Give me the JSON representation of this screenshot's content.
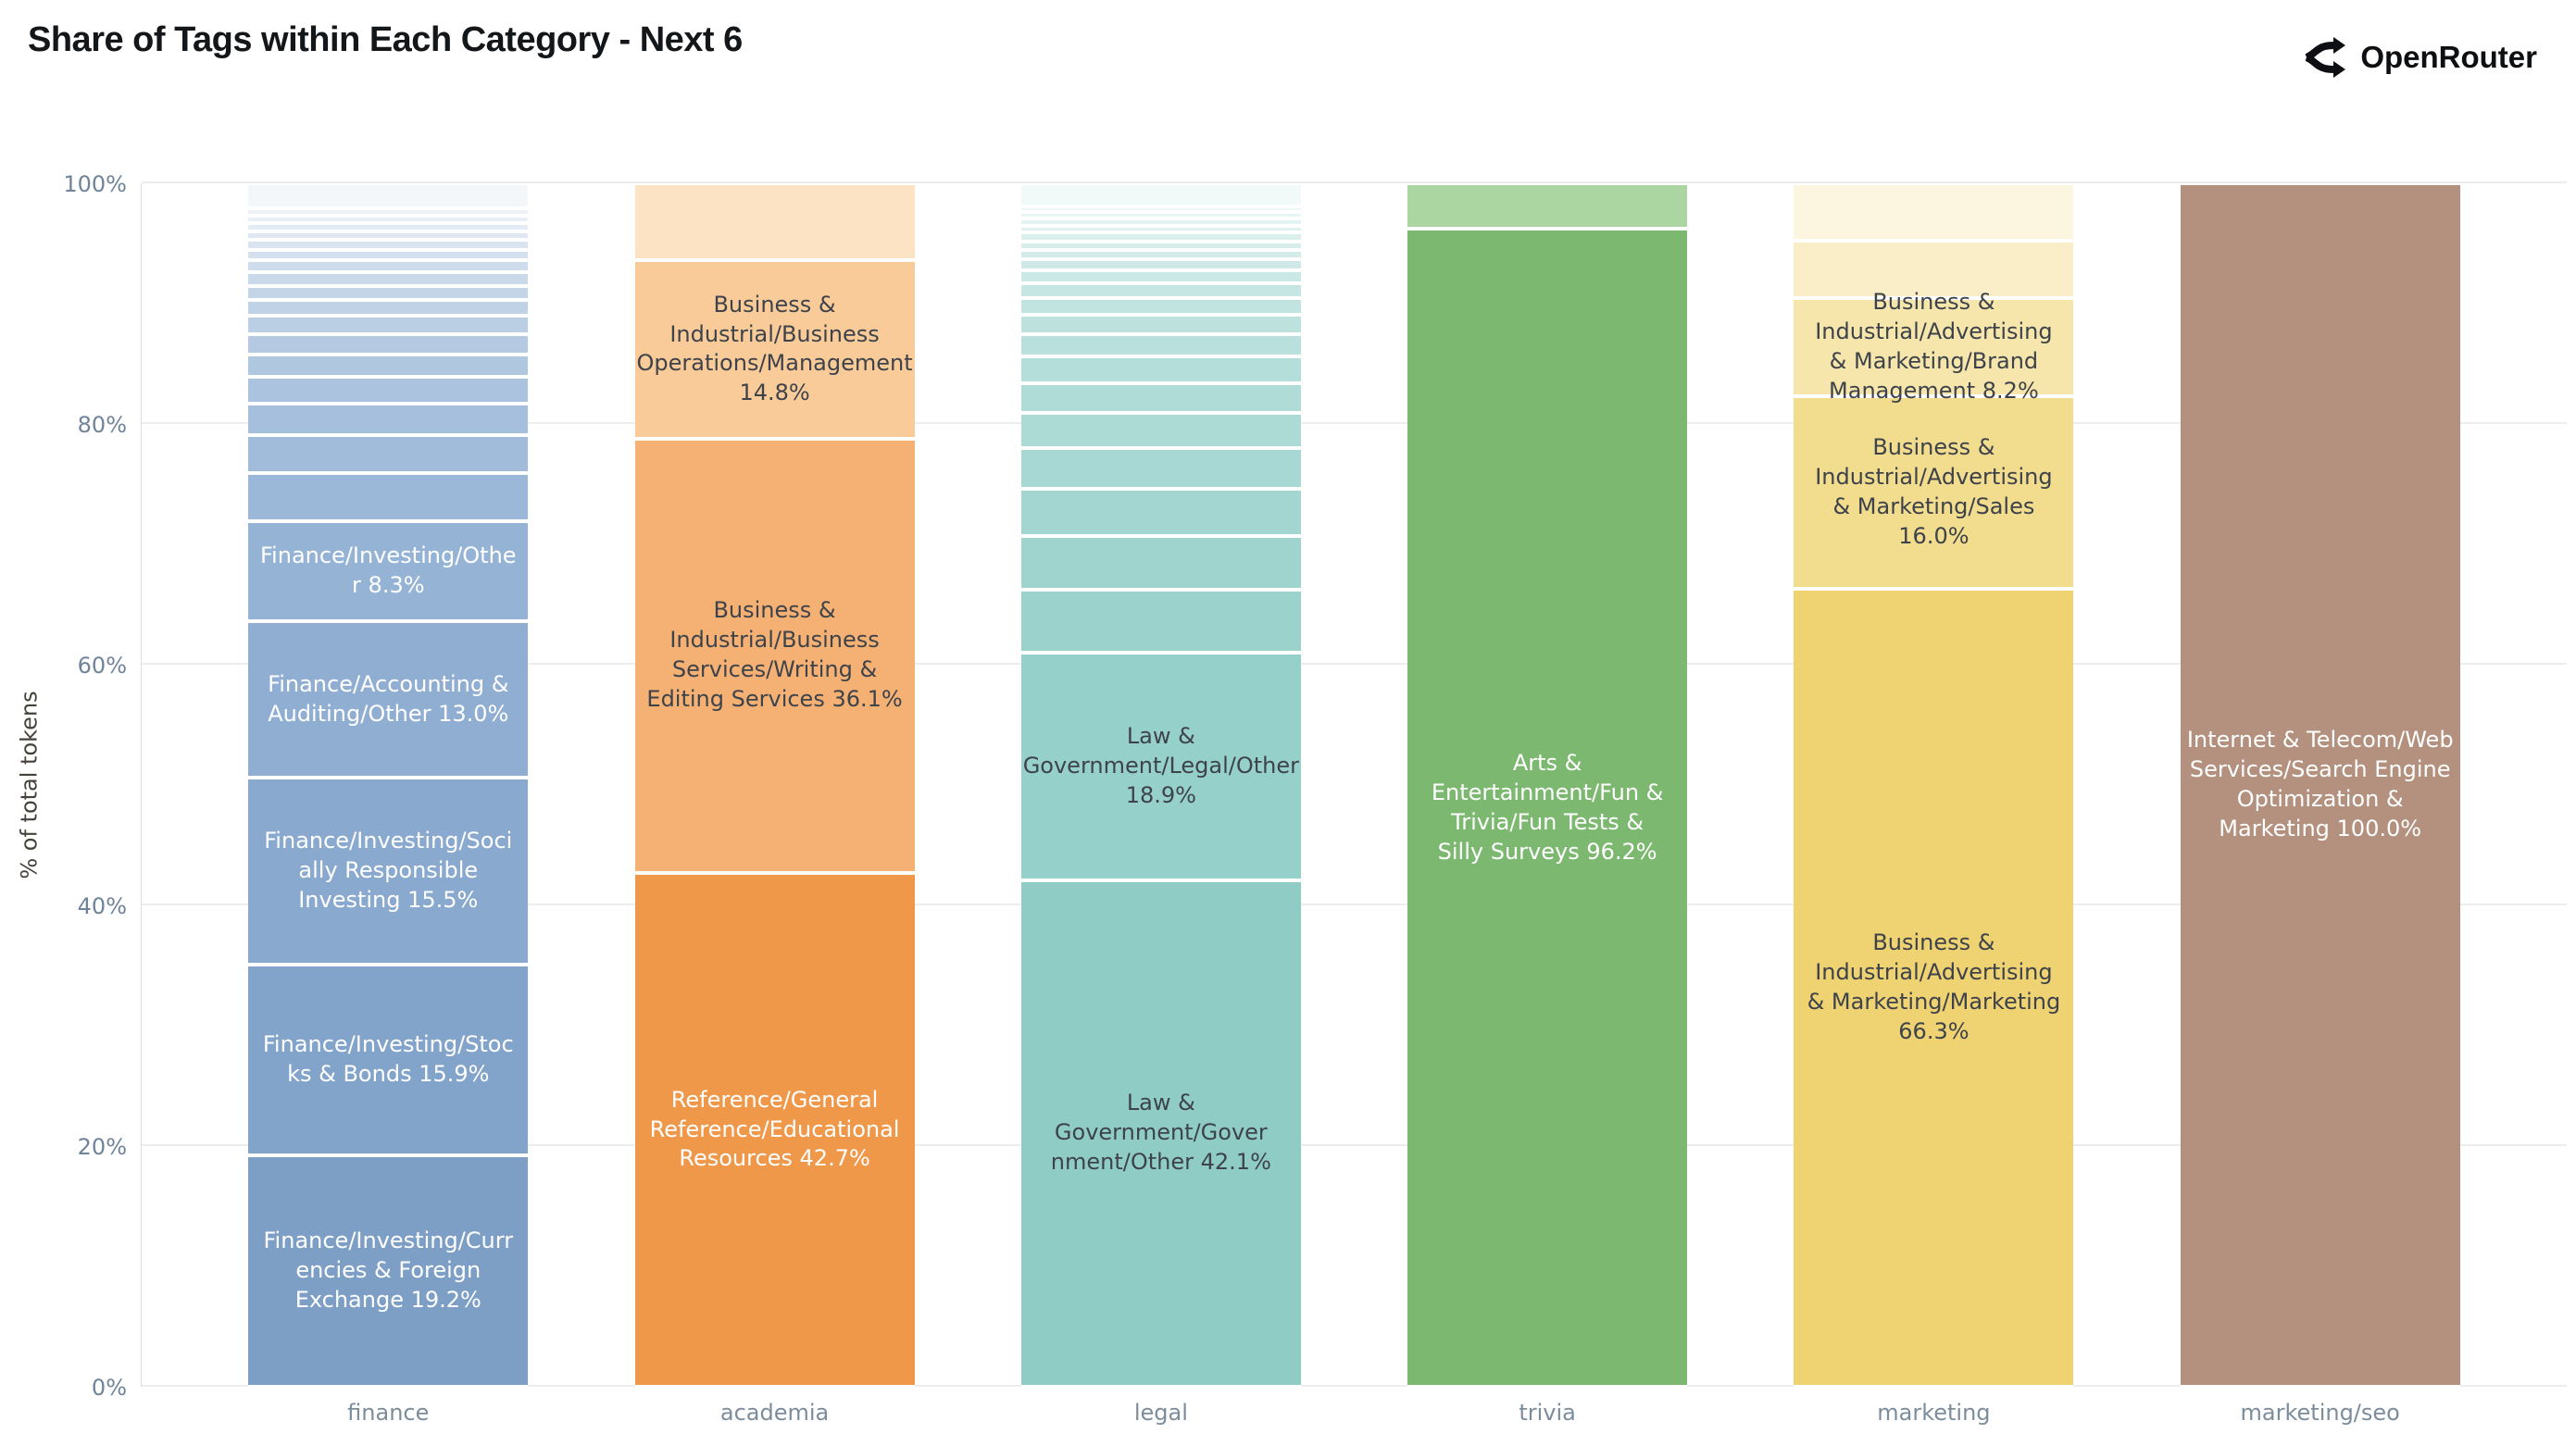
{
  "header": {
    "title": "Share of Tags within Each Category - Next 6",
    "brand": {
      "name": "OpenRouter",
      "icon": "openrouter-logo-icon",
      "color": "#0d0f12"
    }
  },
  "chart_data": {
    "type": "bar",
    "stacked": true,
    "normalized": "percent",
    "title": "Share of Tags within Each Category - Next 6",
    "xlabel": "",
    "ylabel": "% of total tokens",
    "ylim": [
      0,
      100
    ],
    "grid": true,
    "grid_color": "#ededf0",
    "axis_tick_color": "#6f8499",
    "category_label_color": "#7b8d9c",
    "yticks": [
      {
        "label": "0%",
        "value": 0
      },
      {
        "label": "20%",
        "value": 20
      },
      {
        "label": "40%",
        "value": 40
      },
      {
        "label": "60%",
        "value": 60
      },
      {
        "label": "80%",
        "value": 80
      },
      {
        "label": "100%",
        "value": 100
      }
    ],
    "categories": [
      "finance",
      "academia",
      "legal",
      "trivia",
      "marketing",
      "marketing/seo"
    ],
    "bars": [
      {
        "category": "finance",
        "segments": [
          {
            "label": "Finance/Investing/Curr\nencies & Foreign\nExchange 19.2%",
            "value": 19.2,
            "color": "#7d9fc6",
            "text_color": "#ffffff"
          },
          {
            "label": "Finance/Investing/Stoc\nks & Bonds 15.9%",
            "value": 15.9,
            "color": "#83a4ca",
            "text_color": "#ffffff"
          },
          {
            "label": "Finance/Investing/Soci\nally Responsible\nInvesting 15.5%",
            "value": 15.5,
            "color": "#89a9ce",
            "text_color": "#ffffff"
          },
          {
            "label": "Finance/Accounting &\nAuditing/Other 13.0%",
            "value": 13.0,
            "color": "#8faed1",
            "text_color": "#ffffff"
          },
          {
            "label": "Finance/Investing/Othe\nr 8.3%",
            "value": 8.3,
            "color": "#95b3d5",
            "text_color": "#ffffff"
          },
          {
            "label": "",
            "value": 4.0,
            "color": "#9cb8d8"
          },
          {
            "label": "",
            "value": 3.2,
            "color": "#a1bcda"
          },
          {
            "label": "",
            "value": 2.6,
            "color": "#a6bfdc"
          },
          {
            "label": "",
            "value": 2.2,
            "color": "#abc3de"
          },
          {
            "label": "",
            "value": 1.9,
            "color": "#b0c7e0"
          },
          {
            "label": "",
            "value": 1.7,
            "color": "#b5cae2"
          },
          {
            "label": "",
            "value": 1.5,
            "color": "#bacee4"
          },
          {
            "label": "",
            "value": 1.3,
            "color": "#bfd2e6"
          },
          {
            "label": "",
            "value": 1.2,
            "color": "#c4d5e8"
          },
          {
            "label": "",
            "value": 1.1,
            "color": "#cad9ea"
          },
          {
            "label": "",
            "value": 1.0,
            "color": "#cfdcec"
          },
          {
            "label": "",
            "value": 0.9,
            "color": "#d4e0ee"
          },
          {
            "label": "",
            "value": 0.8,
            "color": "#d9e4f0"
          },
          {
            "label": "",
            "value": 0.7,
            "color": "#dee7f2"
          },
          {
            "label": "",
            "value": 0.7,
            "color": "#e3ebf4"
          },
          {
            "label": "",
            "value": 0.6,
            "color": "#e8eff6"
          },
          {
            "label": "",
            "value": 0.6,
            "color": "#edf2f8"
          },
          {
            "label": "",
            "value": 2.1,
            "color": "#f3f7fa"
          }
        ]
      },
      {
        "category": "academia",
        "segments": [
          {
            "label": "Reference/General\nReference/Educational\nResources 42.7%",
            "value": 42.7,
            "color": "#f0984a",
            "text_color": "#ffffff"
          },
          {
            "label": "Business &\nIndustrial/Business\nServices/Writing &\nEditing Services 36.1%",
            "value": 36.1,
            "color": "#f5b173",
            "text_color": "#3e434b"
          },
          {
            "label": "Business &\nIndustrial/Business\nOperations/Management\n14.8%",
            "value": 14.8,
            "color": "#f9cb98",
            "text_color": "#3e434b"
          },
          {
            "label": "",
            "value": 6.4,
            "color": "#fce3c4"
          }
        ]
      },
      {
        "category": "legal",
        "segments": [
          {
            "label": "Law & Government/Gover\nnment/Other 42.1%",
            "value": 42.1,
            "color": "#8fccc6",
            "text_color": "#3e434b"
          },
          {
            "label": "Law &\nGovernment/Legal/Other\n18.9%",
            "value": 18.9,
            "color": "#96d0ca",
            "text_color": "#3e434b"
          },
          {
            "label": "",
            "value": 5.2,
            "color": "#9bd2cc"
          },
          {
            "label": "",
            "value": 4.5,
            "color": "#9fd4ce"
          },
          {
            "label": "",
            "value": 3.9,
            "color": "#a4d6d1"
          },
          {
            "label": "",
            "value": 3.4,
            "color": "#a8d8d3"
          },
          {
            "label": "",
            "value": 2.9,
            "color": "#acdad5"
          },
          {
            "label": "",
            "value": 2.5,
            "color": "#b0dcd7"
          },
          {
            "label": "",
            "value": 2.2,
            "color": "#b4ded9"
          },
          {
            "label": "",
            "value": 1.9,
            "color": "#b9e0dc"
          },
          {
            "label": "",
            "value": 1.6,
            "color": "#bde2de"
          },
          {
            "label": "",
            "value": 1.4,
            "color": "#c1e4e0"
          },
          {
            "label": "",
            "value": 1.2,
            "color": "#c5e6e2"
          },
          {
            "label": "",
            "value": 1.1,
            "color": "#cae8e5"
          },
          {
            "label": "",
            "value": 0.9,
            "color": "#cee9e7"
          },
          {
            "label": "",
            "value": 0.8,
            "color": "#d2ebe9"
          },
          {
            "label": "",
            "value": 0.7,
            "color": "#d6edeb"
          },
          {
            "label": "",
            "value": 0.7,
            "color": "#dbefed"
          },
          {
            "label": "",
            "value": 0.6,
            "color": "#dff1ef"
          },
          {
            "label": "",
            "value": 0.6,
            "color": "#e3f3f1"
          },
          {
            "label": "",
            "value": 0.5,
            "color": "#e7f5f4"
          },
          {
            "label": "",
            "value": 0.5,
            "color": "#ecf7f6"
          },
          {
            "label": "",
            "value": 1.9,
            "color": "#f1faf9"
          }
        ]
      },
      {
        "category": "trivia",
        "segments": [
          {
            "label": "Arts &\nEntertainment/Fun &\nTrivia/Fun Tests &\nSilly Surveys 96.2%",
            "value": 96.2,
            "color": "#7cb870",
            "text_color": "#ffffff"
          },
          {
            "label": "",
            "value": 3.8,
            "color": "#abd5a1"
          }
        ]
      },
      {
        "category": "marketing",
        "segments": [
          {
            "label": "Business &\nIndustrial/Advertising\n& Marketing/Marketing\n66.3%",
            "value": 66.3,
            "color": "#efd271",
            "text_color": "#3e434b"
          },
          {
            "label": "Business &\nIndustrial/Advertising\n& Marketing/Sales\n16.0%",
            "value": 16.0,
            "color": "#f2dc8e",
            "text_color": "#3e434b"
          },
          {
            "label": "Business &\nIndustrial/Advertising\n& Marketing/Brand\nManagement 8.2%",
            "value": 8.2,
            "color": "#f6e6ab",
            "text_color": "#3e434b"
          },
          {
            "label": "",
            "value": 4.7,
            "color": "#f9eec8"
          },
          {
            "label": "",
            "value": 4.8,
            "color": "#fcf5df"
          }
        ]
      },
      {
        "category": "marketing/seo",
        "segments": [
          {
            "label": "Internet & Telecom/Web\nServices/Search Engine\nOptimization &\nMarketing 100.0%",
            "value": 100.0,
            "color": "#b3917e",
            "text_color": "#ffffff"
          }
        ]
      }
    ]
  }
}
